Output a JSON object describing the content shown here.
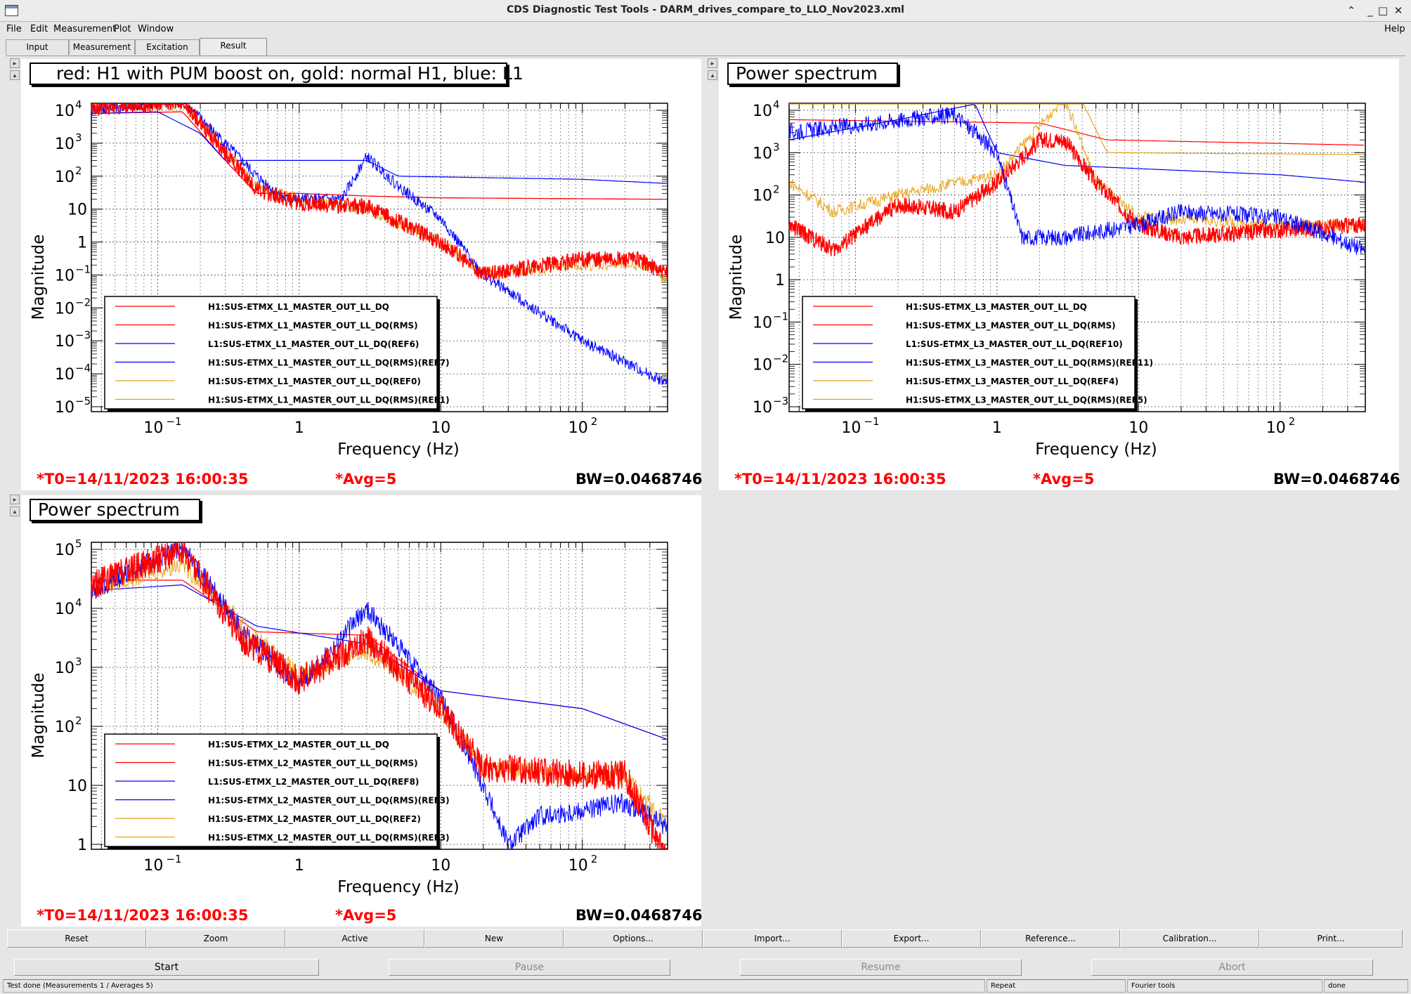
{
  "window": {
    "title": "CDS Diagnostic Test Tools - DARM_drives_compare_to_LLO_Nov2023.xml"
  },
  "menu": {
    "file": "File",
    "edit": "Edit",
    "measurement": "Measurement",
    "plot": "Plot",
    "window": "Window",
    "help": "Help"
  },
  "tabs": [
    "Input",
    "Measurement",
    "Excitation",
    "Result"
  ],
  "active_tab": "Result",
  "panels": [
    {
      "title": "red: H1 with PUM boost on, gold: normal H1, blue: L1",
      "ylabel": "Magnitude",
      "xlabel": "Frequency (Hz)",
      "x_ticks": [
        {
          "f": 0.1,
          "b": "10",
          "e": "−1"
        },
        {
          "f": 1,
          "b": "1",
          "e": ""
        },
        {
          "f": 10,
          "b": "10",
          "e": ""
        },
        {
          "f": 100,
          "b": "10",
          "e": "2"
        }
      ],
      "y_ticks": [
        {
          "b": "10",
          "e": "4"
        },
        {
          "b": "10",
          "e": "3"
        },
        {
          "b": "10",
          "e": "2"
        },
        {
          "b": "10",
          "e": ""
        },
        {
          "b": "1",
          "e": ""
        },
        {
          "b": "10",
          "e": "−1"
        },
        {
          "b": "10",
          "e": "−2"
        },
        {
          "b": "10",
          "e": "−3"
        },
        {
          "b": "10",
          "e": "−4"
        },
        {
          "b": "10",
          "e": "−5"
        }
      ],
      "legend": [
        {
          "label": "H1:SUS-ETMX_L1_MASTER_OUT_LL_DQ",
          "color": "#ff0000"
        },
        {
          "label": "H1:SUS-ETMX_L1_MASTER_OUT_LL_DQ(RMS)",
          "color": "#ff0000"
        },
        {
          "label": "L1:SUS-ETMX_L1_MASTER_OUT_LL_DQ(REF6)",
          "color": "#0000ff"
        },
        {
          "label": "H1:SUS-ETMX_L1_MASTER_OUT_LL_DQ(RMS)(REF7)",
          "color": "#0000ff"
        },
        {
          "label": "H1:SUS-ETMX_L1_MASTER_OUT_LL_DQ(REF0)",
          "color": "#e8a317"
        },
        {
          "label": "H1:SUS-ETMX_L1_MASTER_OUT_LL_DQ(RMS)(REF1)",
          "color": "#e8a317"
        }
      ],
      "t0": "*T0=14/11/2023 16:00:35",
      "avg": "*Avg=5",
      "bw": "BW=0.0468746"
    },
    {
      "title": "Power spectrum",
      "ylabel": "Magnitude",
      "xlabel": "Frequency (Hz)",
      "x_ticks": [
        {
          "f": 0.1,
          "b": "10",
          "e": "−1"
        },
        {
          "f": 1,
          "b": "1",
          "e": ""
        },
        {
          "f": 10,
          "b": "10",
          "e": ""
        },
        {
          "f": 100,
          "b": "10",
          "e": "2"
        }
      ],
      "y_ticks": [
        {
          "b": "10",
          "e": "4"
        },
        {
          "b": "10",
          "e": "3"
        },
        {
          "b": "10",
          "e": "2"
        },
        {
          "b": "10",
          "e": ""
        },
        {
          "b": "1",
          "e": ""
        },
        {
          "b": "10",
          "e": "−1"
        },
        {
          "b": "10",
          "e": "−2"
        },
        {
          "b": "10",
          "e": "−3"
        }
      ],
      "legend": [
        {
          "label": "H1:SUS-ETMX_L3_MASTER_OUT_LL_DQ",
          "color": "#ff0000"
        },
        {
          "label": "H1:SUS-ETMX_L3_MASTER_OUT_LL_DQ(RMS)",
          "color": "#ff0000"
        },
        {
          "label": "L1:SUS-ETMX_L3_MASTER_OUT_LL_DQ(REF10)",
          "color": "#0000ff"
        },
        {
          "label": "H1:SUS-ETMX_L3_MASTER_OUT_LL_DQ(RMS)(REF11)",
          "color": "#0000ff"
        },
        {
          "label": "H1:SUS-ETMX_L3_MASTER_OUT_LL_DQ(REF4)",
          "color": "#e8a317"
        },
        {
          "label": "H1:SUS-ETMX_L3_MASTER_OUT_LL_DQ(RMS)(REF5)",
          "color": "#e8a317"
        }
      ],
      "t0": "*T0=14/11/2023 16:00:35",
      "avg": "*Avg=5",
      "bw": "BW=0.0468746"
    },
    {
      "title": "Power spectrum",
      "ylabel": "Magnitude",
      "xlabel": "Frequency (Hz)",
      "x_ticks": [
        {
          "f": 0.1,
          "b": "10",
          "e": "−1"
        },
        {
          "f": 1,
          "b": "1",
          "e": ""
        },
        {
          "f": 10,
          "b": "10",
          "e": ""
        },
        {
          "f": 100,
          "b": "10",
          "e": "2"
        }
      ],
      "y_ticks": [
        {
          "b": "10",
          "e": "5"
        },
        {
          "b": "10",
          "e": "4"
        },
        {
          "b": "10",
          "e": "3"
        },
        {
          "b": "10",
          "e": "2"
        },
        {
          "b": "10",
          "e": ""
        },
        {
          "b": "1",
          "e": ""
        }
      ],
      "legend": [
        {
          "label": "H1:SUS-ETMX_L2_MASTER_OUT_LL_DQ",
          "color": "#ff0000"
        },
        {
          "label": "H1:SUS-ETMX_L2_MASTER_OUT_LL_DQ(RMS)",
          "color": "#ff0000"
        },
        {
          "label": "L1:SUS-ETMX_L2_MASTER_OUT_LL_DQ(REF8)",
          "color": "#0000ff"
        },
        {
          "label": "H1:SUS-ETMX_L2_MASTER_OUT_LL_DQ(RMS)(REF3)",
          "color": "#0000ff"
        },
        {
          "label": "H1:SUS-ETMX_L2_MASTER_OUT_LL_DQ(REF2)",
          "color": "#e8a317"
        },
        {
          "label": "H1:SUS-ETMX_L2_MASTER_OUT_LL_DQ(RMS)(REF3)",
          "color": "#e8a317"
        }
      ],
      "t0": "*T0=14/11/2023 16:00:35",
      "avg": "*Avg=5",
      "bw": "BW=0.0468746"
    }
  ],
  "buttons": [
    "Reset",
    "Zoom",
    "Active",
    "New",
    "Options...",
    "Import...",
    "Export...",
    "Reference...",
    "Calibration...",
    "Print..."
  ],
  "controls": {
    "start": "Start",
    "pause": "Pause",
    "resume": "Resume",
    "abort": "Abort"
  },
  "status": {
    "main": "Test done (Measurements 1 / Averages 5)",
    "repeat": "Repeat",
    "fourier": "Fourier tools",
    "state": "done"
  }
}
